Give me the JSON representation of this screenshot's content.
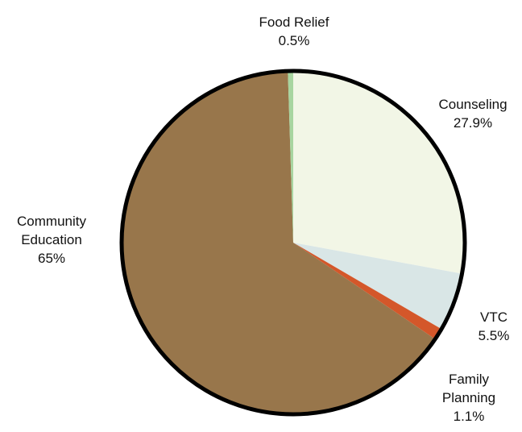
{
  "chart_data": {
    "type": "pie",
    "slices": [
      {
        "label": "Counseling",
        "label_lines": [
          "Counseling"
        ],
        "value_label": "27.9%",
        "value": 27.9,
        "color": "#f2f6e6"
      },
      {
        "label": "VTC",
        "label_lines": [
          "VTC"
        ],
        "value_label": "5.5%",
        "value": 5.5,
        "color": "#d9e6e6"
      },
      {
        "label": "Family Planning",
        "label_lines": [
          "Family",
          "Planning"
        ],
        "value_label": "1.1%",
        "value": 1.1,
        "color": "#d4572a"
      },
      {
        "label": "Community Education",
        "label_lines": [
          "Community",
          "Education"
        ],
        "value_label": "65%",
        "value": 65,
        "color": "#98764b"
      },
      {
        "label": "Food Relief",
        "label_lines": [
          "Food Relief"
        ],
        "value_label": "0.5%",
        "value": 0.5,
        "color": "#a8d5a0"
      }
    ],
    "start_angle": "12 o'clock",
    "direction": "clockwise",
    "border_color": "#000000"
  }
}
